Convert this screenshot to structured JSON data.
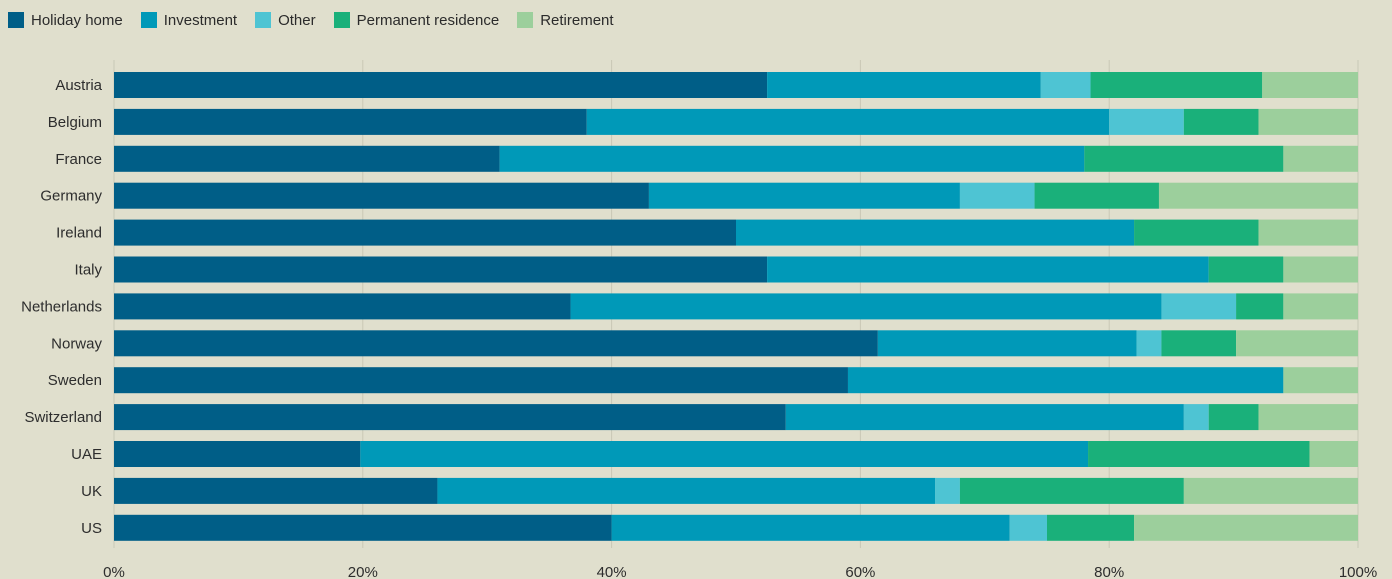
{
  "chart_data": {
    "type": "bar",
    "orientation": "horizontal",
    "stacked": true,
    "title": "",
    "xlabel": "",
    "ylabel": "",
    "xlim": [
      0,
      100
    ],
    "x_ticks": [
      "0%",
      "20%",
      "40%",
      "60%",
      "80%",
      "100%"
    ],
    "grid": true,
    "legend_placement": "top-left",
    "categories": [
      "Austria",
      "Belgium",
      "France",
      "Germany",
      "Ireland",
      "Italy",
      "Netherlands",
      "Norway",
      "Sweden",
      "Switzerland",
      "UAE",
      "UK",
      "US"
    ],
    "series": [
      {
        "name": "Holiday home",
        "color": "#005e87",
        "values": [
          52.5,
          38,
          31,
          43,
          50,
          52.5,
          36.7,
          61.4,
          59,
          54,
          19.8,
          26,
          40
        ]
      },
      {
        "name": "Investment",
        "color": "#0099b8",
        "values": [
          22,
          42,
          47,
          25,
          32,
          35.5,
          47.5,
          20.8,
          35,
          32,
          58.5,
          40,
          32
        ]
      },
      {
        "name": "Other",
        "color": "#4ec4d3",
        "values": [
          4,
          6,
          0,
          6,
          0,
          0,
          6,
          2,
          0,
          2,
          0,
          2,
          3
        ]
      },
      {
        "name": "Permanent residence",
        "color": "#1ab07a",
        "values": [
          13.8,
          6,
          16,
          10,
          10,
          6,
          3.8,
          6,
          0,
          4,
          17.8,
          18,
          7
        ]
      },
      {
        "name": "Retirement",
        "color": "#9ccf9c",
        "values": [
          7.7,
          8,
          6,
          16,
          8,
          6,
          6,
          9.8,
          6,
          8,
          3.9,
          14,
          18
        ]
      }
    ]
  }
}
